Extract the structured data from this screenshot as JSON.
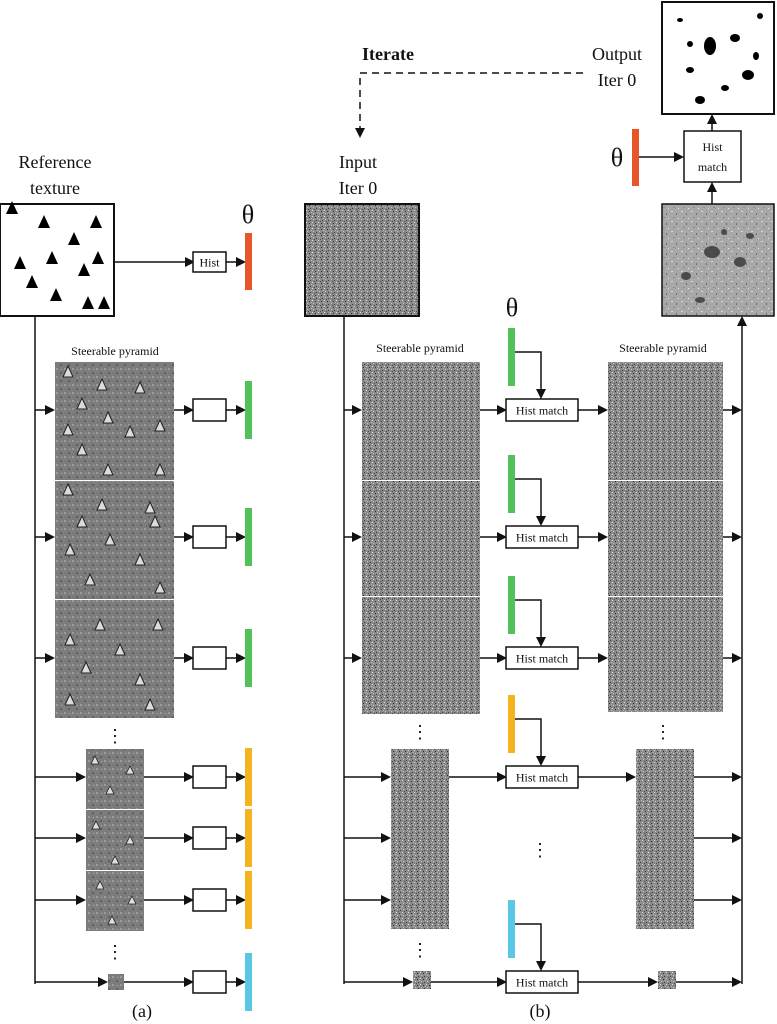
{
  "panel_a": {
    "reference_title_line1": "Reference",
    "reference_title_line2": "texture",
    "theta": "θ",
    "hist_label": "Hist",
    "pyramid_label": "Steerable pyramid",
    "vdots": "⋮",
    "caption": "(a)"
  },
  "panel_b": {
    "iterate_label": "Iterate",
    "input_line1": "Input",
    "input_line2": "Iter 0",
    "output_line1": "Output",
    "output_line2": "Iter 0",
    "theta_top": "θ",
    "theta_mid": "θ",
    "hist_match_top_line1": "Hist",
    "hist_match_top_line2": "match",
    "hist_match_label": "Hist match",
    "pyramid_label_left": "Steerable pyramid",
    "pyramid_label_right": "Steerable pyramid",
    "vdots": "⋮",
    "caption": "(b)"
  },
  "colors": {
    "orange": "#e8552b",
    "green": "#52c15a",
    "yellow": "#f5b41d",
    "cyan": "#58c8e6",
    "pyramid_gray": "#7c7c7c",
    "noise_gray": "#8a8a8a"
  }
}
